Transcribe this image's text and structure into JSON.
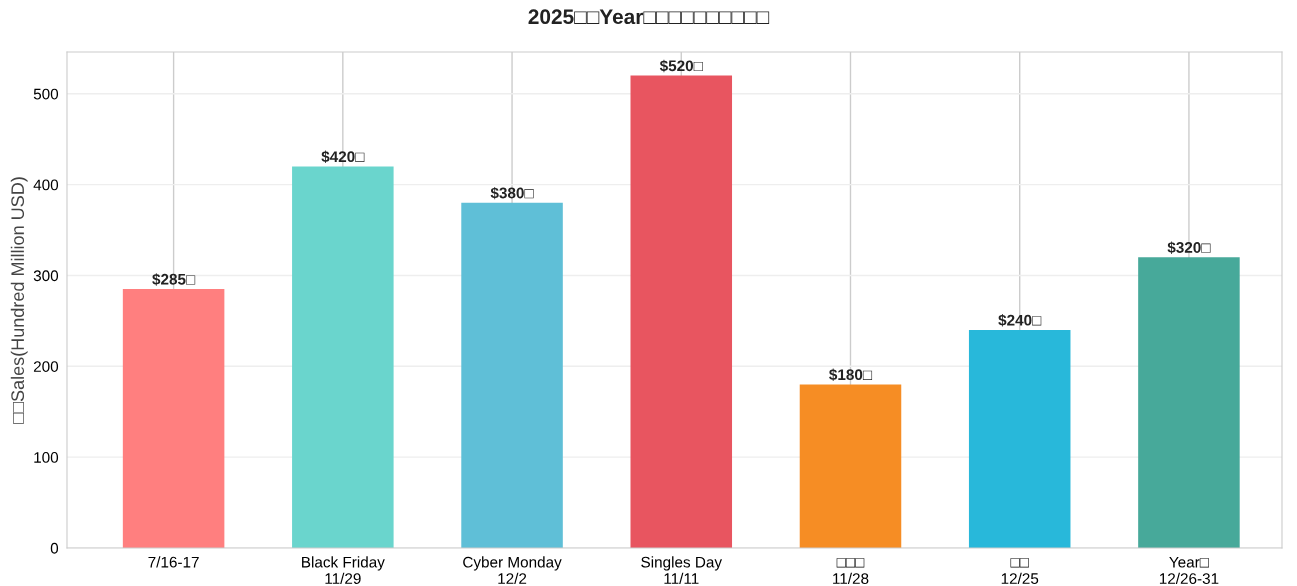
{
  "chart_data": {
    "type": "bar",
    "title": "2025□□Year□□□□□□□□□□",
    "ylabel": "□□Sales(Hundred Million USD)",
    "categories": [
      "7/16-17",
      "Black Friday\n11/29",
      "Cyber Monday\n12/2",
      "Singles Day\n11/11",
      "□□□\n11/28",
      "□□\n12/25",
      "Year□\n12/26-31"
    ],
    "values": [
      285,
      420,
      380,
      520,
      180,
      240,
      320
    ],
    "colors": [
      "#ff7f7f",
      "#6ad5cd",
      "#5fbfd7",
      "#e85560",
      "#f68d24",
      "#28b8da",
      "#47a99a"
    ],
    "value_labels": [
      "$285□",
      "$420□",
      "$380□",
      "$520□",
      "$180□",
      "$240□",
      "$320□"
    ],
    "ylim": [
      0,
      546
    ],
    "yticks": [
      0,
      100,
      200,
      300,
      400,
      500
    ],
    "grid": true
  }
}
